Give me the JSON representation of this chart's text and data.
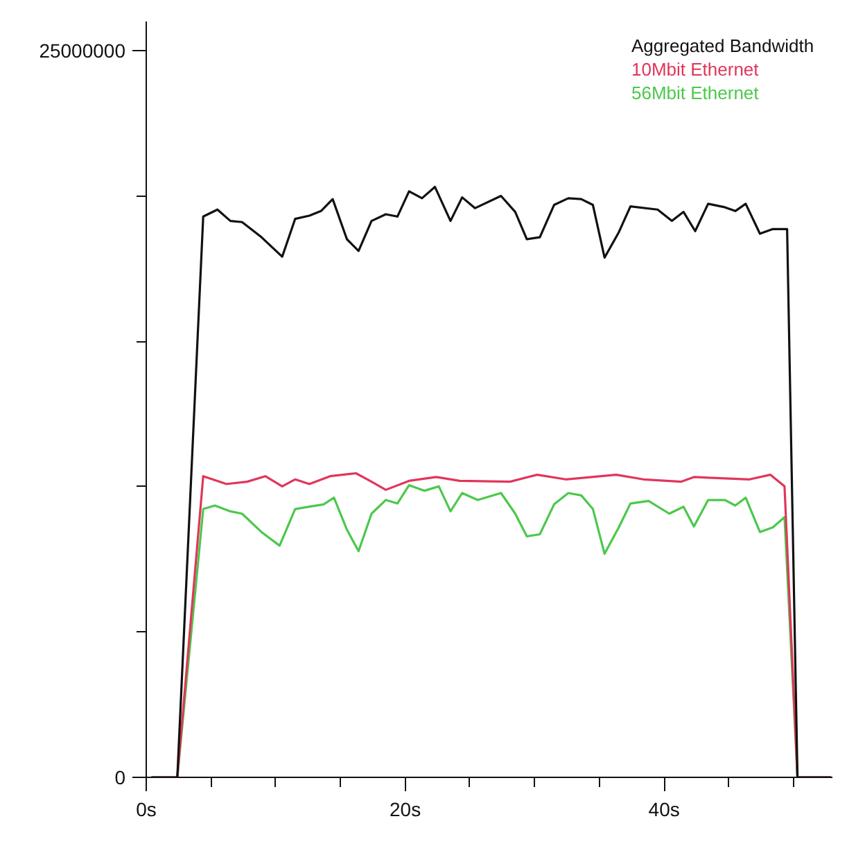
{
  "chart_data": {
    "type": "line",
    "legend": "top right",
    "grid": false,
    "line_style": "solid",
    "xlim": [
      0,
      53
    ],
    "ylim": [
      0,
      26000000
    ],
    "xticks": [
      {
        "value": 0,
        "label": "0s"
      },
      {
        "value": 5,
        "label": null
      },
      {
        "value": 10,
        "label": null
      },
      {
        "value": 15,
        "label": null
      },
      {
        "value": 20,
        "label": "20s"
      },
      {
        "value": 25,
        "label": null
      },
      {
        "value": 30,
        "label": null
      },
      {
        "value": 35,
        "label": null
      },
      {
        "value": 40,
        "label": "40s"
      },
      {
        "value": 45,
        "label": null
      },
      {
        "value": 50,
        "label": null
      }
    ],
    "yticks": [
      0,
      {
        "value": 5000000,
        "label": null
      },
      {
        "value": 10000000,
        "label": null
      },
      {
        "value": 15000000,
        "label": null
      },
      {
        "value": 20000000,
        "label": null
      },
      25000000
    ],
    "series": [
      {
        "name": "56Mbit Ethernet",
        "color": "#4cc84c",
        "x": [
          0.4,
          2.4,
          4.4,
          5.3,
          6.5,
          7.4,
          8.9,
          10.3,
          11.5,
          12.6,
          13.7,
          14.5,
          15.5,
          16.4,
          17.4,
          18.5,
          19.4,
          20.3,
          21.5,
          22.6,
          23.5,
          24.4,
          25.6,
          27.4,
          28.5,
          29.4,
          30.4,
          31.5,
          32.6,
          33.6,
          34.5,
          35.4,
          36.5,
          37.4,
          38.8,
          40.4,
          41.5,
          42.3,
          43.4,
          44.7,
          45.5,
          46.3,
          47.4,
          48.4,
          49.3,
          50.3,
          52.9
        ],
        "values": [
          0,
          0,
          9230000,
          9350000,
          9150000,
          9070000,
          8440000,
          7970000,
          9230000,
          9310000,
          9390000,
          9620000,
          8520000,
          7780000,
          9070000,
          9540000,
          9420000,
          10050000,
          9860000,
          10010000,
          9150000,
          9780000,
          9540000,
          9780000,
          9070000,
          8290000,
          8360000,
          9390000,
          9780000,
          9700000,
          9230000,
          7690000,
          8600000,
          9420000,
          9510000,
          9070000,
          9310000,
          8630000,
          9540000,
          9540000,
          9350000,
          9620000,
          8440000,
          8600000,
          8950000,
          0,
          0
        ]
      },
      {
        "name": "10Mbit Ethernet",
        "color": "#e0365a",
        "x": [
          0.4,
          2.4,
          4.4,
          6.2,
          7.8,
          9.2,
          10.5,
          11.5,
          12.6,
          14.2,
          16.2,
          17.4,
          18.5,
          20.3,
          22.4,
          24.2,
          28.1,
          30.2,
          32.4,
          36.3,
          38.4,
          41.3,
          42.3,
          46.6,
          48.2,
          49.3,
          50.3,
          52.9
        ],
        "values": [
          0,
          0,
          10360000,
          10090000,
          10170000,
          10360000,
          10010000,
          10250000,
          10090000,
          10360000,
          10460000,
          10170000,
          9890000,
          10200000,
          10330000,
          10200000,
          10170000,
          10410000,
          10250000,
          10410000,
          10250000,
          10170000,
          10330000,
          10250000,
          10410000,
          10010000,
          0,
          0
        ]
      },
      {
        "name": "Aggregated Bandwidth",
        "color": "#111111",
        "x": [
          0.4,
          2.4,
          4.4,
          5.5,
          6.5,
          7.4,
          8.9,
          10.5,
          11.5,
          12.6,
          13.5,
          14.4,
          15.5,
          16.4,
          17.4,
          18.5,
          19.4,
          20.3,
          21.3,
          22.3,
          23.5,
          24.4,
          25.4,
          27.4,
          28.5,
          29.4,
          30.4,
          31.5,
          32.6,
          33.6,
          34.5,
          35.4,
          36.5,
          37.4,
          39.5,
          40.6,
          41.5,
          42.4,
          43.4,
          44.7,
          45.5,
          46.3,
          47.4,
          48.4,
          49.5,
          50.3,
          52.9
        ],
        "values": [
          0,
          0,
          19290000,
          19530000,
          19140000,
          19100000,
          18580000,
          17910000,
          19210000,
          19320000,
          19480000,
          19890000,
          18510000,
          18110000,
          19140000,
          19370000,
          19290000,
          20160000,
          19920000,
          20310000,
          19140000,
          19950000,
          19580000,
          20000000,
          19450000,
          18510000,
          18580000,
          19690000,
          19920000,
          19890000,
          19690000,
          17880000,
          18750000,
          19640000,
          19530000,
          19140000,
          19450000,
          18790000,
          19730000,
          19610000,
          19480000,
          19730000,
          18700000,
          18860000,
          18860000,
          0,
          0
        ]
      }
    ]
  }
}
